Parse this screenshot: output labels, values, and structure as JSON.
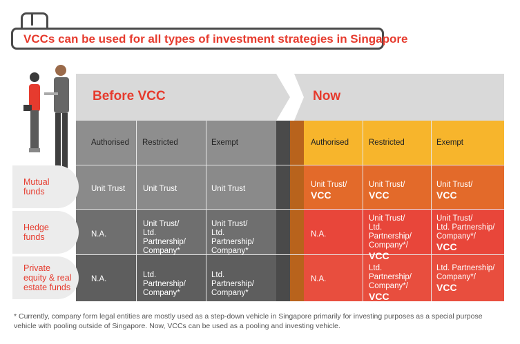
{
  "title": "VCCs can be used for all types of investment strategies in Singapore",
  "before": {
    "heading": "Before VCC",
    "columns": [
      "Authorised",
      "Restricted",
      "Exempt"
    ],
    "rows": [
      [
        "Unit Trust",
        "Unit Trust",
        "Unit Trust"
      ],
      [
        "N.A.",
        "Unit Trust/\nLtd. Partnership/\nCompany*",
        "Unit Trust/\nLtd. Partnership/\nCompany*"
      ],
      [
        "N.A.",
        "Ltd. Partnership/\nCompany*",
        "Ltd. Partnership/\nCompany*"
      ]
    ]
  },
  "now": {
    "heading": "Now",
    "columns": [
      "Authorised",
      "Restricted",
      "Exempt"
    ],
    "rows": [
      [
        {
          "t": "Unit Trust/",
          "v": "VCC"
        },
        {
          "t": "Unit Trust/",
          "v": "VCC"
        },
        {
          "t": "Unit Trust/",
          "v": "VCC"
        }
      ],
      [
        {
          "t": "N.A.",
          "v": ""
        },
        {
          "t": "Unit Trust/\nLtd. Partnership/\nCompany*/",
          "v": "VCC"
        },
        {
          "t": "Unit Trust/\nLtd. Partnership/\nCompany*/",
          "v": "VCC"
        }
      ],
      [
        {
          "t": "N.A.",
          "v": ""
        },
        {
          "t": "Ltd. Partnership/\nCompany*/",
          "v": "VCC"
        },
        {
          "t": "Ltd. Partnership/\nCompany*/",
          "v": "VCC"
        }
      ]
    ]
  },
  "row_labels": [
    "Mutual\nfunds",
    "Hedge\nfunds",
    "Private\nequity & real\nestate funds"
  ],
  "footnote": "* Currently, company form legal entities are mostly used as a step-down vehicle in Singapore primarily for investing purposes as a special purpose vehicle with pooling outside of Singapore. Now, VCCs can be used as a pooling and investing vehicle.",
  "colors": {
    "accent": "#e63b2e",
    "before_header": "#8e8e8e",
    "before_row1": "#8a8a8a",
    "before_row2": "#707070",
    "before_row3": "#5e5e5e",
    "now_header": "#f7b52c",
    "now_row1": "#e36a2a",
    "now_row2": "#e8463a",
    "now_row3": "#e8463a"
  }
}
